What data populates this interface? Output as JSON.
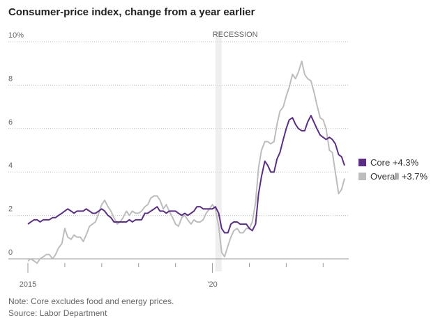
{
  "chart_data": {
    "type": "line",
    "title": "Consumer-price index, change from a year earlier",
    "note": "Note: Core excludes food and energy prices.",
    "source": "Source: Labor Department",
    "x": [
      2015,
      2015.08,
      2015.17,
      2015.25,
      2015.33,
      2015.42,
      2015.5,
      2015.58,
      2015.67,
      2015.75,
      2015.83,
      2015.92,
      2016,
      2016.08,
      2016.17,
      2016.25,
      2016.33,
      2016.42,
      2016.5,
      2016.58,
      2016.67,
      2016.75,
      2016.83,
      2016.92,
      2017,
      2017.08,
      2017.17,
      2017.25,
      2017.33,
      2017.42,
      2017.5,
      2017.58,
      2017.67,
      2017.75,
      2017.83,
      2017.92,
      2018,
      2018.08,
      2018.17,
      2018.25,
      2018.33,
      2018.42,
      2018.5,
      2018.58,
      2018.67,
      2018.75,
      2018.83,
      2018.92,
      2019,
      2019.08,
      2019.17,
      2019.25,
      2019.33,
      2019.42,
      2019.5,
      2019.58,
      2019.67,
      2019.75,
      2019.83,
      2019.92,
      2020,
      2020.08,
      2020.17,
      2020.25,
      2020.33,
      2020.42,
      2020.5,
      2020.58,
      2020.67,
      2020.75,
      2020.83,
      2020.92,
      2021,
      2021.08,
      2021.17,
      2021.25,
      2021.33,
      2021.42,
      2021.5,
      2021.58,
      2021.67,
      2021.75,
      2021.83,
      2021.92,
      2022,
      2022.08,
      2022.17,
      2022.25,
      2022.33,
      2022.42,
      2022.5,
      2022.58,
      2022.67,
      2022.75,
      2022.83,
      2022.92,
      2023,
      2023.08,
      2023.17,
      2023.25,
      2023.33,
      2023.42,
      2023.5,
      2023.58
    ],
    "series": [
      {
        "name": "Core +4.3%",
        "color": "#5b2e83",
        "values": [
          1.6,
          1.7,
          1.8,
          1.8,
          1.7,
          1.8,
          1.8,
          1.8,
          1.9,
          1.9,
          2.0,
          2.1,
          2.2,
          2.3,
          2.2,
          2.1,
          2.2,
          2.2,
          2.2,
          2.3,
          2.2,
          2.1,
          2.1,
          2.2,
          2.3,
          2.2,
          2.0,
          1.9,
          1.7,
          1.7,
          1.7,
          1.7,
          1.7,
          1.8,
          1.7,
          1.8,
          1.8,
          1.8,
          2.1,
          2.1,
          2.2,
          2.3,
          2.4,
          2.2,
          2.2,
          2.1,
          2.2,
          2.2,
          2.2,
          2.1,
          2.0,
          2.1,
          2.0,
          2.1,
          2.2,
          2.4,
          2.4,
          2.3,
          2.3,
          2.3,
          2.3,
          2.4,
          2.1,
          1.4,
          1.2,
          1.2,
          1.6,
          1.7,
          1.7,
          1.6,
          1.6,
          1.6,
          1.4,
          1.3,
          1.6,
          3.0,
          3.8,
          4.5,
          4.3,
          4.0,
          4.0,
          4.6,
          4.9,
          5.5,
          6.0,
          6.4,
          6.5,
          6.2,
          6.0,
          5.9,
          5.9,
          6.3,
          6.6,
          6.3,
          6.0,
          5.7,
          5.6,
          5.5,
          5.6,
          5.5,
          5.3,
          4.8,
          4.7,
          4.3
        ]
      },
      {
        "name": "Overall +3.7%",
        "color": "#bdbdbd",
        "values": [
          -0.1,
          0.0,
          -0.1,
          -0.2,
          0.0,
          0.1,
          0.2,
          0.2,
          0.0,
          0.2,
          0.5,
          0.7,
          1.4,
          1.0,
          0.9,
          1.1,
          1.0,
          1.0,
          0.8,
          1.1,
          1.5,
          1.6,
          1.7,
          2.1,
          2.5,
          2.7,
          2.4,
          2.2,
          1.9,
          1.6,
          1.7,
          1.9,
          2.2,
          2.0,
          2.2,
          2.1,
          2.1,
          2.2,
          2.4,
          2.5,
          2.8,
          2.9,
          2.9,
          2.7,
          2.3,
          2.5,
          2.2,
          1.9,
          1.6,
          1.5,
          1.9,
          2.0,
          1.8,
          1.6,
          1.8,
          1.7,
          1.7,
          1.8,
          2.1,
          2.3,
          2.5,
          2.3,
          1.5,
          0.3,
          0.1,
          0.6,
          1.0,
          1.3,
          1.4,
          1.2,
          1.2,
          1.4,
          1.4,
          1.7,
          2.6,
          4.2,
          5.0,
          5.4,
          5.4,
          5.3,
          5.4,
          6.2,
          6.8,
          7.0,
          7.5,
          7.9,
          8.5,
          8.3,
          8.6,
          9.1,
          8.5,
          8.3,
          8.2,
          7.7,
          7.1,
          6.5,
          6.4,
          6.0,
          5.0,
          4.9,
          4.0,
          3.0,
          3.2,
          3.7
        ]
      }
    ],
    "recession": {
      "label": "RECESSION",
      "range": [
        2020.08,
        2020.25
      ]
    },
    "xlim": [
      2015,
      2023.58
    ],
    "xticks": [
      2015,
      {
        "value": 2020,
        "label": "'20"
      }
    ],
    "xminorticks": [
      2016,
      2017,
      2018,
      2019,
      2021,
      2022,
      2023
    ],
    "ylim": [
      0,
      10
    ],
    "yticks": [
      0,
      2,
      4,
      6,
      8,
      {
        "value": 10,
        "label": "10%"
      }
    ],
    "grid": true,
    "legend": "right"
  }
}
